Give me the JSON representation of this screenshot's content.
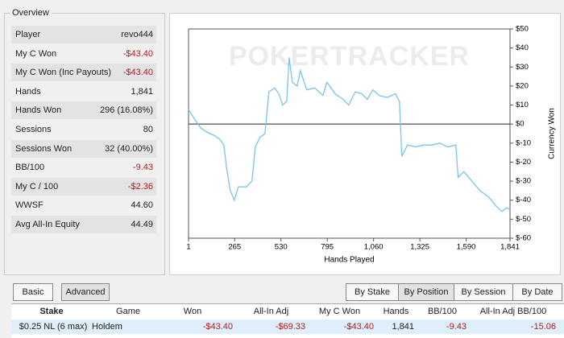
{
  "overview": {
    "title": "Overview",
    "rows": [
      [
        "Player",
        "revo444"
      ],
      [
        "My C Won",
        "-$43.40"
      ],
      [
        "My C Won (Inc Payouts)",
        "-$43.40"
      ],
      [
        "Hands",
        "1,841"
      ],
      [
        "Hands Won",
        "296 (16.08%)"
      ],
      [
        "Sessions",
        "80"
      ],
      [
        "Sessions Won",
        "32 (40.00%)"
      ],
      [
        "BB/100",
        "-9.43"
      ],
      [
        "My C / 100",
        "-$2.36"
      ],
      [
        "WWSF",
        "44.60"
      ],
      [
        "Avg All-In Equity",
        "44.49"
      ]
    ]
  },
  "chart_data": {
    "type": "line",
    "watermark": "POKERTRACKER",
    "xlabel": "Hands Played",
    "ylabel": "Currency Won",
    "color": "#7cc3e8",
    "x": [
      1,
      33,
      70,
      102,
      148,
      180,
      203,
      217,
      240,
      263,
      286,
      332,
      364,
      383,
      410,
      438,
      461,
      494,
      517,
      540,
      563,
      577,
      595,
      623,
      641,
      678,
      724,
      770,
      793,
      840,
      886,
      918,
      955,
      992,
      1024,
      1056,
      1093,
      1139,
      1185,
      1208,
      1222,
      1254,
      1300,
      1346,
      1392,
      1438,
      1484,
      1531,
      1544,
      1577,
      1623,
      1669,
      1715,
      1761,
      1794,
      1821,
      1841
    ],
    "values": [
      7.6,
      3,
      -2,
      -4,
      -6,
      -8,
      -11,
      -22,
      -35,
      -40,
      -33,
      -33,
      -30,
      -12,
      -7,
      -5,
      17,
      19,
      16,
      10,
      12,
      35,
      22,
      20,
      28,
      18,
      19,
      15,
      22,
      16,
      13,
      10,
      17,
      16,
      13,
      18,
      15,
      14,
      16,
      12,
      -17,
      -11,
      -12,
      -11,
      -11,
      -10,
      -12,
      -11,
      -28,
      -25,
      -30,
      -35,
      -38,
      -43,
      -46,
      -44,
      -45
    ],
    "xlim": [
      1,
      1841
    ],
    "ylim": [
      -60,
      50
    ],
    "xticks": [
      1,
      265,
      530,
      795,
      {
        "value": 1060,
        "label": "1,060"
      },
      {
        "value": 1325,
        "label": "1,325"
      },
      {
        "value": 1590,
        "label": "1,590"
      },
      {
        "value": 1841,
        "label": "1,841"
      }
    ],
    "yticks": [
      {
        "value": 50,
        "label": "$50"
      },
      {
        "value": 40,
        "label": "$40"
      },
      {
        "value": 30,
        "label": "$30"
      },
      {
        "value": 20,
        "label": "$20"
      },
      {
        "value": 10,
        "label": "$10"
      },
      {
        "value": 0,
        "label": "$0"
      },
      {
        "value": -10,
        "label": "$-10"
      },
      {
        "value": -20,
        "label": "$-20"
      },
      {
        "value": -30,
        "label": "$-30"
      },
      {
        "value": -40,
        "label": "$-40"
      },
      {
        "value": -50,
        "label": "$-50"
      },
      {
        "value": -60,
        "label": "$-60"
      }
    ]
  },
  "view_tabs": [
    "Basic",
    "Advanced"
  ],
  "group_tabs": [
    "By Stake",
    "By Position",
    "By Session",
    "By Date"
  ],
  "table": {
    "columns": [
      "Stake",
      "Game",
      "Won",
      "All-In Adj",
      "My C Won",
      "Hands",
      "BB/100",
      "All-In Adj BB/100"
    ],
    "rows": [
      [
        "$0.25 NL (6 max)",
        "Holdem",
        "-$43.40",
        "-$69.33",
        "-$43.40",
        "1,841",
        "-9.43",
        "-15.06"
      ]
    ]
  }
}
